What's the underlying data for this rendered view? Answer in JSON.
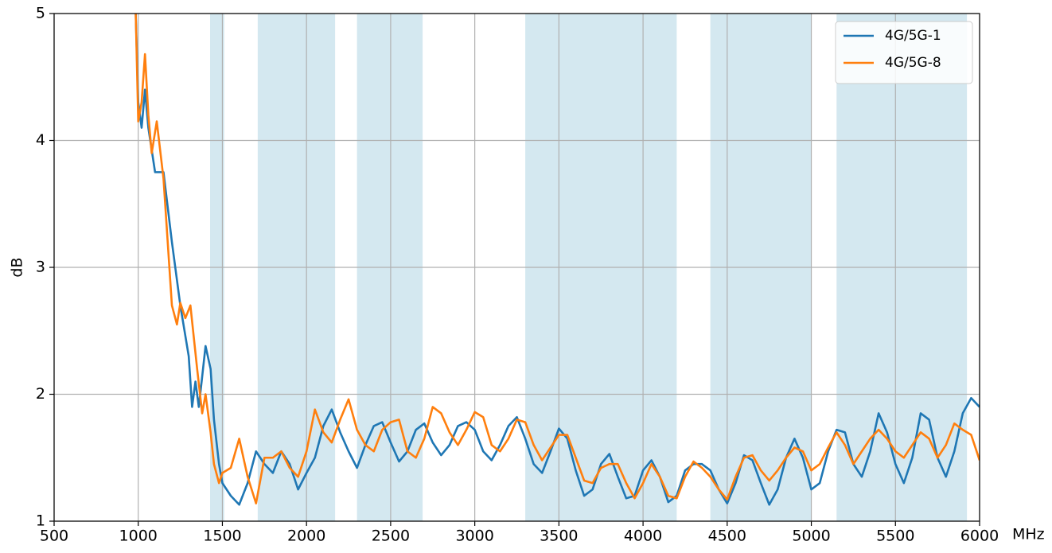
{
  "chart_data": {
    "type": "line",
    "xlabel": "MHz",
    "ylabel": "dB",
    "xlim": [
      500,
      6000
    ],
    "ylim": [
      1,
      5
    ],
    "xticks": [
      500,
      1000,
      1500,
      2000,
      2500,
      3000,
      3500,
      4000,
      4500,
      5000,
      5500,
      6000
    ],
    "yticks": [
      1,
      2,
      3,
      4,
      5
    ],
    "grid": true,
    "legend": "upper right",
    "band_color": "#d4e8f0",
    "bands": [
      [
        1427,
        1511
      ],
      [
        1710,
        2170
      ],
      [
        2300,
        2690
      ],
      [
        3300,
        4200
      ],
      [
        4400,
        5000
      ],
      [
        5150,
        5925
      ]
    ],
    "series": [
      {
        "name": "4G/5G-1",
        "color": "#1f77b4",
        "x": [
          985,
          1000,
          1020,
          1040,
          1060,
          1100,
          1150,
          1200,
          1250,
          1300,
          1320,
          1340,
          1360,
          1400,
          1430,
          1450,
          1480,
          1500,
          1550,
          1600,
          1650,
          1700,
          1750,
          1800,
          1850,
          1900,
          1950,
          2000,
          2050,
          2100,
          2150,
          2200,
          2250,
          2300,
          2350,
          2400,
          2450,
          2500,
          2550,
          2600,
          2650,
          2700,
          2750,
          2800,
          2850,
          2900,
          2950,
          3000,
          3050,
          3100,
          3150,
          3200,
          3250,
          3300,
          3350,
          3400,
          3450,
          3500,
          3550,
          3600,
          3650,
          3700,
          3750,
          3800,
          3850,
          3900,
          3950,
          4000,
          4050,
          4100,
          4150,
          4200,
          4250,
          4300,
          4350,
          4400,
          4450,
          4500,
          4550,
          4600,
          4650,
          4700,
          4750,
          4800,
          4850,
          4900,
          4950,
          5000,
          5050,
          5100,
          5150,
          5200,
          5250,
          5300,
          5350,
          5400,
          5450,
          5500,
          5550,
          5600,
          5650,
          5700,
          5750,
          5800,
          5850,
          5900,
          5950,
          6000
        ],
        "values": [
          5.0,
          4.3,
          4.1,
          4.4,
          4.1,
          3.75,
          3.75,
          3.2,
          2.7,
          2.3,
          1.9,
          2.1,
          1.9,
          2.38,
          2.2,
          1.8,
          1.45,
          1.3,
          1.2,
          1.13,
          1.3,
          1.55,
          1.45,
          1.38,
          1.55,
          1.45,
          1.25,
          1.38,
          1.5,
          1.75,
          1.88,
          1.7,
          1.55,
          1.42,
          1.6,
          1.75,
          1.78,
          1.62,
          1.47,
          1.55,
          1.72,
          1.77,
          1.62,
          1.52,
          1.6,
          1.75,
          1.78,
          1.72,
          1.55,
          1.48,
          1.6,
          1.75,
          1.82,
          1.65,
          1.45,
          1.38,
          1.55,
          1.73,
          1.65,
          1.4,
          1.2,
          1.25,
          1.45,
          1.53,
          1.35,
          1.18,
          1.2,
          1.4,
          1.48,
          1.35,
          1.15,
          1.2,
          1.4,
          1.45,
          1.45,
          1.4,
          1.25,
          1.14,
          1.3,
          1.52,
          1.48,
          1.3,
          1.13,
          1.25,
          1.5,
          1.65,
          1.5,
          1.25,
          1.3,
          1.55,
          1.72,
          1.7,
          1.45,
          1.35,
          1.55,
          1.85,
          1.7,
          1.45,
          1.3,
          1.5,
          1.85,
          1.8,
          1.5,
          1.35,
          1.55,
          1.85,
          1.97,
          1.9
        ]
      },
      {
        "name": "4G/5G-8",
        "color": "#ff7f0e",
        "x": [
          985,
          1000,
          1020,
          1040,
          1060,
          1080,
          1110,
          1150,
          1200,
          1230,
          1250,
          1280,
          1310,
          1350,
          1380,
          1400,
          1430,
          1450,
          1480,
          1500,
          1550,
          1600,
          1650,
          1700,
          1750,
          1800,
          1850,
          1900,
          1950,
          2000,
          2050,
          2100,
          2150,
          2200,
          2250,
          2300,
          2350,
          2400,
          2450,
          2500,
          2550,
          2600,
          2650,
          2700,
          2750,
          2800,
          2850,
          2900,
          2950,
          3000,
          3050,
          3100,
          3150,
          3200,
          3250,
          3300,
          3350,
          3400,
          3450,
          3500,
          3550,
          3600,
          3650,
          3700,
          3750,
          3800,
          3850,
          3900,
          3950,
          4000,
          4050,
          4100,
          4150,
          4200,
          4250,
          4300,
          4350,
          4400,
          4450,
          4500,
          4550,
          4600,
          4650,
          4700,
          4750,
          4800,
          4850,
          4900,
          4950,
          5000,
          5050,
          5100,
          5150,
          5200,
          5250,
          5300,
          5350,
          5400,
          5450,
          5500,
          5550,
          5600,
          5650,
          5700,
          5750,
          5800,
          5850,
          5900,
          5950,
          6000
        ],
        "values": [
          5.0,
          4.15,
          4.3,
          4.68,
          4.2,
          3.9,
          4.15,
          3.7,
          2.7,
          2.55,
          2.72,
          2.6,
          2.7,
          2.2,
          1.85,
          2.0,
          1.7,
          1.45,
          1.3,
          1.38,
          1.42,
          1.65,
          1.35,
          1.14,
          1.5,
          1.5,
          1.55,
          1.42,
          1.35,
          1.55,
          1.88,
          1.7,
          1.62,
          1.8,
          1.96,
          1.72,
          1.6,
          1.55,
          1.72,
          1.78,
          1.8,
          1.55,
          1.5,
          1.65,
          1.9,
          1.85,
          1.7,
          1.6,
          1.72,
          1.86,
          1.82,
          1.6,
          1.55,
          1.65,
          1.8,
          1.78,
          1.6,
          1.48,
          1.58,
          1.68,
          1.68,
          1.5,
          1.32,
          1.3,
          1.42,
          1.45,
          1.45,
          1.3,
          1.18,
          1.3,
          1.45,
          1.35,
          1.2,
          1.18,
          1.35,
          1.47,
          1.42,
          1.35,
          1.25,
          1.17,
          1.35,
          1.5,
          1.52,
          1.4,
          1.32,
          1.4,
          1.5,
          1.58,
          1.55,
          1.4,
          1.45,
          1.58,
          1.7,
          1.6,
          1.45,
          1.55,
          1.65,
          1.72,
          1.65,
          1.55,
          1.5,
          1.6,
          1.7,
          1.65,
          1.5,
          1.6,
          1.77,
          1.72,
          1.68,
          1.48
        ]
      }
    ]
  }
}
